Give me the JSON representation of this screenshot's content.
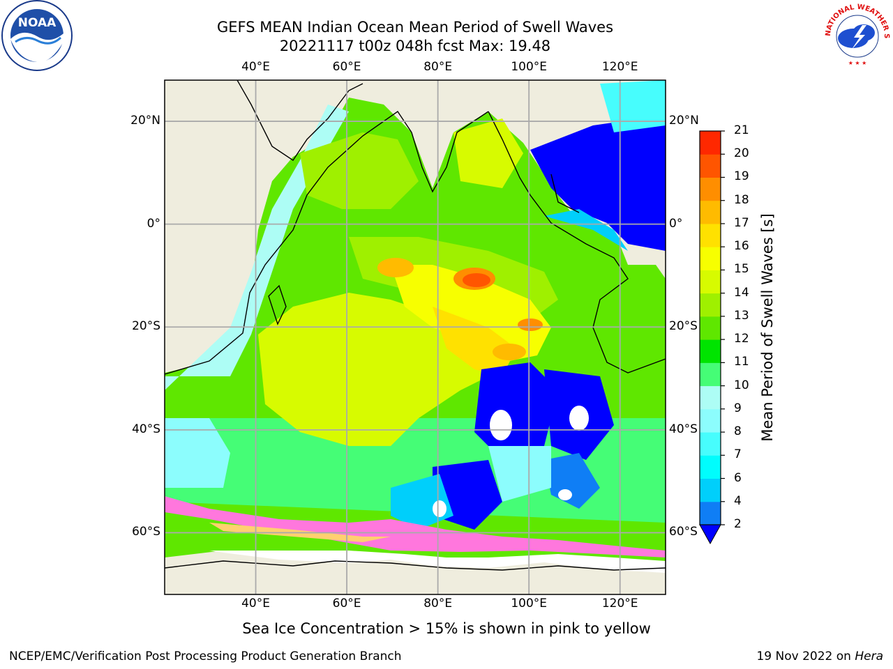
{
  "header": {
    "title_line1": "GEFS MEAN Indian Ocean Mean Period of Swell Waves",
    "title_line2": "20221117 t00z 048h fcst   Max: 19.48"
  },
  "logos": {
    "left": "NOAA",
    "left_ring_text": "NATIONAL OCEANIC AND ATMOSPHERIC ADMINISTRATION · U.S. DEPARTMENT OF COMMERCE",
    "right_ring_text": "NATIONAL WEATHER SERVICE"
  },
  "map": {
    "lon_labels": [
      "40°E",
      "60°E",
      "80°E",
      "100°E",
      "120°E"
    ],
    "lon_values": [
      40,
      60,
      80,
      100,
      120
    ],
    "lat_labels": [
      "20°N",
      "0°",
      "20°S",
      "40°S",
      "60°S"
    ],
    "lat_values": [
      20,
      0,
      -20,
      -40,
      -60
    ],
    "lon_range": [
      20,
      130
    ],
    "lat_range": [
      -72,
      28
    ],
    "land_color": "#efedde",
    "grid": true
  },
  "colorbar": {
    "title": "Mean Period of Swell Waves [s]",
    "levels": [
      2,
      4,
      6,
      7,
      8,
      9,
      10,
      11,
      12,
      13,
      14,
      15,
      16,
      17,
      18,
      19,
      20,
      21
    ],
    "tick_labels": [
      "2",
      "4",
      "6",
      "7",
      "8",
      "9",
      "10",
      "11",
      "12",
      "13",
      "14",
      "15",
      "16",
      "17",
      "18",
      "19",
      "20",
      "21"
    ],
    "colors": [
      "#0f7ef5",
      "#00cffb",
      "#00fdfd",
      "#47fdfd",
      "#8cfdfd",
      "#adfdf5",
      "#45fd76",
      "#00e400",
      "#5fe700",
      "#9ff000",
      "#d7fb00",
      "#f7ff00",
      "#ffe100",
      "#ffbb00",
      "#ff8e00",
      "#ff5500",
      "#ff2800"
    ],
    "under_color": "#0000ff"
  },
  "footer": {
    "caption": "Sea Ice Concentration > 15% is shown in pink to yellow",
    "left": "NCEP/EMC/Verification Post Processing Product Generation Branch",
    "right_date": "19 Nov 2022 on ",
    "right_host": "Hera"
  }
}
